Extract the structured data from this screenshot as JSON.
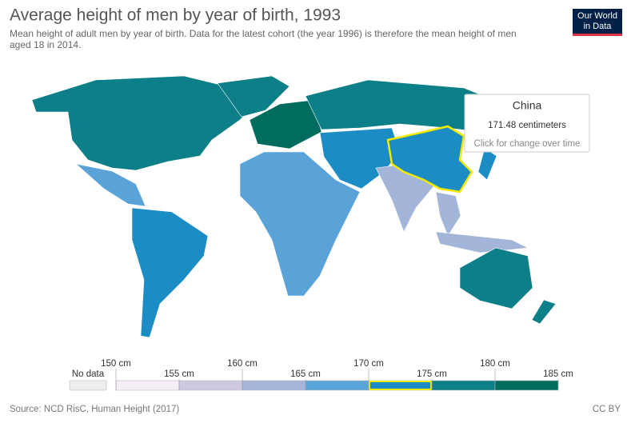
{
  "header": {
    "title": "Average height of men by year of birth, 1993",
    "subtitle": [
      "Mean height of adult men by year of birth. Data for the latest cohort (the year 1996) is therefore the mean height of men",
      "aged 18 in 2014."
    ],
    "logo": [
      "Our World",
      "in Data"
    ]
  },
  "tooltip": {
    "country": "China",
    "value": "171.48 centimeters",
    "hint": "Click for change over time"
  },
  "legend": {
    "no_data": "No data",
    "no_data_color": "#eeeeee",
    "ticks": [
      {
        "value": 150,
        "label": "150 cm"
      },
      {
        "value": 155,
        "label": "155 cm"
      },
      {
        "value": 160,
        "label": "160 cm"
      },
      {
        "value": 165,
        "label": "165 cm"
      },
      {
        "value": 170,
        "label": "170 cm"
      },
      {
        "value": 175,
        "label": "175 cm"
      },
      {
        "value": 180,
        "label": "180 cm"
      },
      {
        "value": 185,
        "label": "185 cm"
      }
    ],
    "colors": [
      "#f6eef6",
      "#cdc9e2",
      "#a3b5d8",
      "#5aa3d8",
      "#1b8dc4",
      "#0d7f88",
      "#006c5f"
    ],
    "highlight_bin": 4
  },
  "footer": {
    "source": "Source: NCD RisC, Human Height (2017)",
    "license": "CC BY"
  }
}
